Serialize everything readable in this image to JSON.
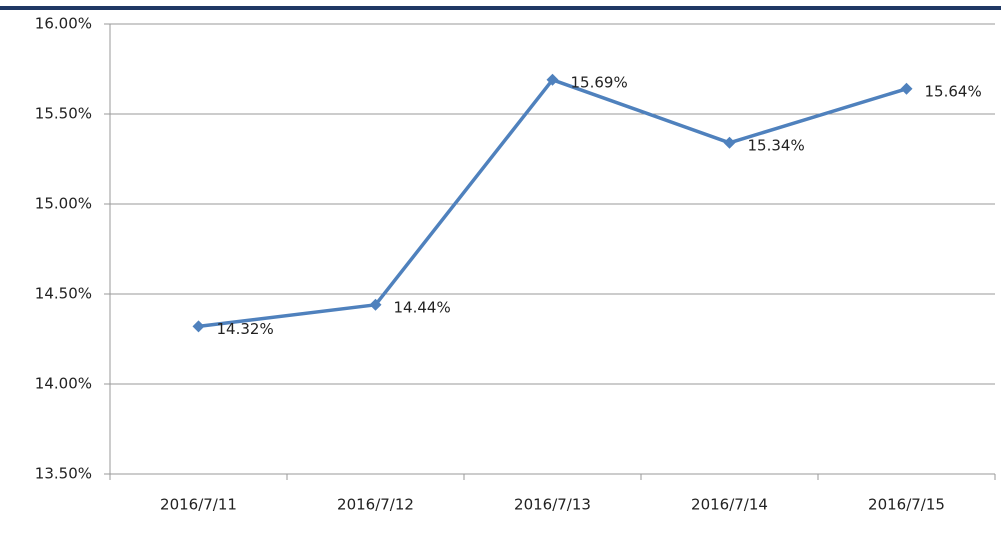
{
  "chart_data": {
    "type": "line",
    "categories": [
      "2016/7/11",
      "2016/7/12",
      "2016/7/13",
      "2016/7/14",
      "2016/7/15"
    ],
    "values": [
      14.32,
      14.44,
      15.69,
      15.34,
      15.64
    ],
    "value_labels": [
      "14.32%",
      "14.44%",
      "15.69%",
      "15.34%",
      "15.64%"
    ],
    "color": "#4f81bd",
    "ylim": [
      13.5,
      16.0
    ],
    "yticks": [
      {
        "value": 13.5,
        "label": "13.50%"
      },
      {
        "value": 14.0,
        "label": "14.00%"
      },
      {
        "value": 14.5,
        "label": "14.50%"
      },
      {
        "value": 15.0,
        "label": "15.00%"
      },
      {
        "value": 15.5,
        "label": "15.50%"
      },
      {
        "value": 16.0,
        "label": "16.00%"
      }
    ],
    "grid": true
  }
}
